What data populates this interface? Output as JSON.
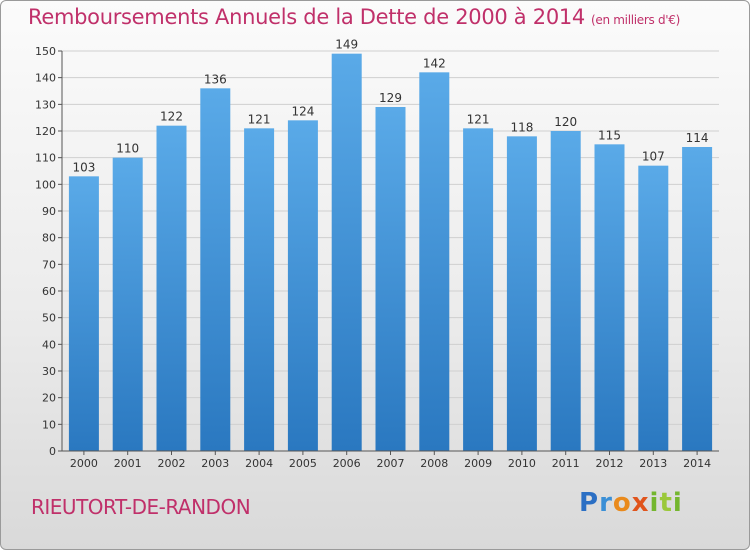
{
  "chart_data": {
    "type": "bar",
    "title": "Remboursements Annuels de la Dette de 2000 à 2014",
    "subtitle": "(en milliers d'€)",
    "categories": [
      "2000",
      "2001",
      "2002",
      "2003",
      "2004",
      "2005",
      "2006",
      "2007",
      "2008",
      "2009",
      "2010",
      "2011",
      "2012",
      "2013",
      "2014"
    ],
    "values": [
      103,
      110,
      122,
      136,
      121,
      124,
      149,
      129,
      142,
      121,
      118,
      120,
      115,
      107,
      114
    ],
    "yticks": [
      0,
      10,
      20,
      30,
      40,
      50,
      60,
      70,
      80,
      90,
      100,
      110,
      120,
      130,
      140,
      150
    ],
    "ylim": [
      0,
      150
    ],
    "xlabel": "",
    "ylabel": "",
    "grid": true,
    "colors": {
      "bar_top": "#5aaae8",
      "bar_bottom": "#2a78c0",
      "grid": "#cfcfcf",
      "title": "#c0306a"
    }
  },
  "footer": {
    "place": "RIEUTORT-DE-RANDON",
    "logo_letters": [
      "P",
      "r",
      "o",
      "x",
      "i",
      "t",
      "i"
    ]
  }
}
